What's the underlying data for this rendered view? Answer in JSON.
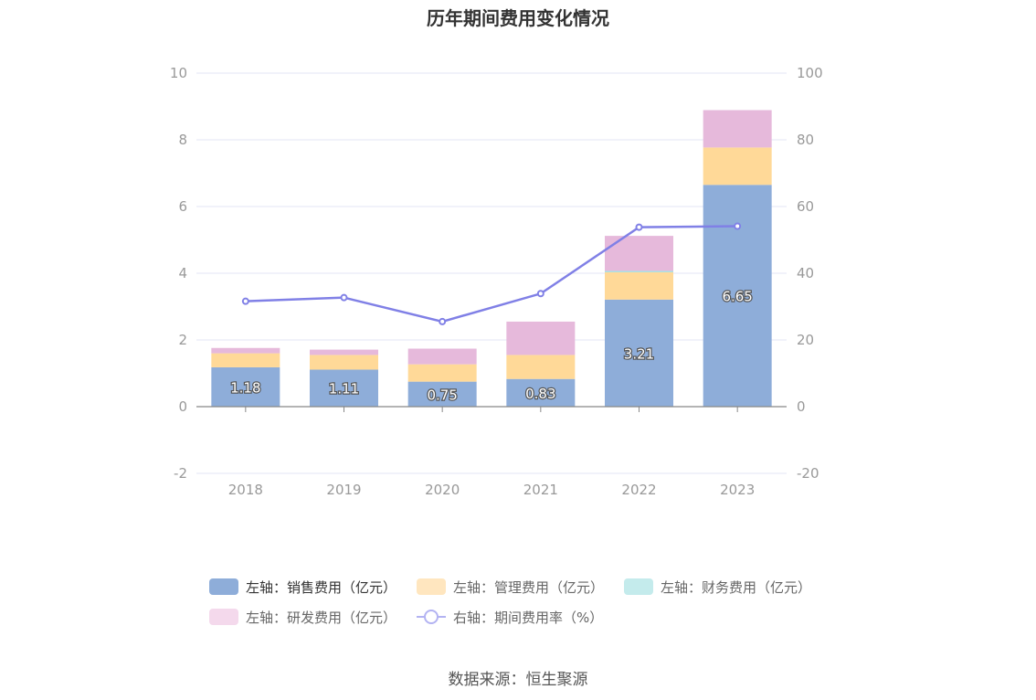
{
  "title": "历年期间费用变化情况",
  "source": "数据来源：恒生聚源",
  "legend": [
    {
      "label": "左轴：销售费用（亿元）",
      "color": "#8eadd9",
      "kind": "bar"
    },
    {
      "label": "左轴：管理费用（亿元）",
      "color": "#ffe6bf",
      "kind": "bar"
    },
    {
      "label": "左轴：财务费用（亿元）",
      "color": "#c4ebec",
      "kind": "bar"
    },
    {
      "label": "左轴：研发费用（亿元）",
      "color": "#f4d9ec",
      "kind": "bar"
    },
    {
      "label": "右轴：期间费用率（%）",
      "color": "#b3b3f2",
      "kind": "line"
    }
  ],
  "chart_data": {
    "type": "bar",
    "stacked": true,
    "title": "历年期间费用变化情况",
    "categories": [
      "2018",
      "2019",
      "2020",
      "2021",
      "2022",
      "2023"
    ],
    "y_left": {
      "min": -2,
      "max": 10,
      "ticks": [
        "-2",
        "0",
        "2",
        "4",
        "6",
        "8",
        "10"
      ]
    },
    "y_right": {
      "min": -20,
      "max": 100,
      "ticks": [
        "-20",
        "0",
        "20",
        "40",
        "60",
        "80",
        "100"
      ]
    },
    "grid": true,
    "legend_position": "bottom",
    "series": [
      {
        "name": "左轴：销售费用（亿元）",
        "axis": "left",
        "color": "#8eadd9",
        "values": [
          1.18,
          1.11,
          0.75,
          0.83,
          3.21,
          6.65
        ],
        "labels": [
          "1.18",
          "1.11",
          "0.75",
          "0.83",
          "3.21",
          "6.65"
        ]
      },
      {
        "name": "左轴：管理费用（亿元）",
        "axis": "left",
        "color": "#ffd998",
        "values": [
          0.42,
          0.44,
          0.52,
          0.72,
          0.82,
          1.12
        ]
      },
      {
        "name": "左轴：财务费用（亿元）",
        "axis": "left",
        "color": "#a3dfe0",
        "values": [
          0.0,
          0.0,
          0.0,
          0.0,
          0.04,
          0.0
        ]
      },
      {
        "name": "左轴：研发费用（亿元）",
        "axis": "left",
        "color": "#e6b9db",
        "values": [
          0.16,
          0.16,
          0.47,
          1.0,
          1.05,
          1.12
        ]
      },
      {
        "name": "右轴：期间费用率（%）",
        "axis": "right",
        "type": "line",
        "color": "#8080e6",
        "values": [
          31.6,
          32.7,
          25.5,
          33.9,
          53.8,
          54.1
        ]
      }
    ]
  }
}
